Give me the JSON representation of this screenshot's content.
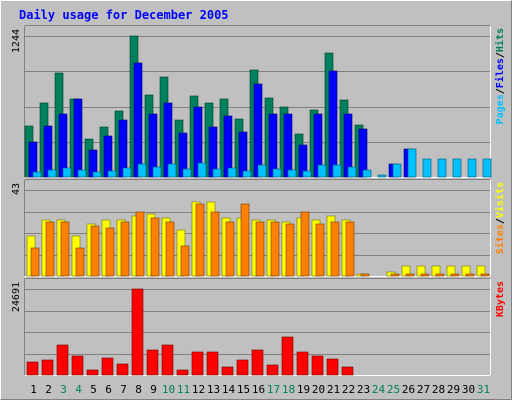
{
  "chart_data": {
    "type": "bar",
    "title": "Daily usage for December 2005",
    "days": [
      "1",
      "2",
      "3",
      "4",
      "5",
      "6",
      "7",
      "8",
      "9",
      "10",
      "11",
      "12",
      "13",
      "14",
      "15",
      "16",
      "17",
      "18",
      "19",
      "20",
      "21",
      "22",
      "23",
      "24",
      "25",
      "26",
      "27",
      "28",
      "29",
      "30",
      "31"
    ],
    "weekend_days": [
      "3",
      "4",
      "10",
      "11",
      "17",
      "18",
      "24",
      "25",
      "31"
    ],
    "panels": [
      {
        "name": "hits-files-pages",
        "ymax_label": "1244",
        "ymax": 1244,
        "legend": [
          {
            "text": "Pages",
            "color": "#00c0ff"
          },
          {
            "text": "/",
            "color": "#000000"
          },
          {
            "text": "Files",
            "color": "#0000ff"
          },
          {
            "text": "/",
            "color": "#000000"
          },
          {
            "text": "Hits",
            "color": "#00805c"
          }
        ],
        "series": [
          {
            "name": "Hits",
            "color": "#00805c",
            "values": [
              451,
              656,
              916,
              688,
              331,
              443,
              580,
              1244,
              721,
              880,
              500,
              711,
              656,
              688,
              516,
              942,
              700,
              615,
              375,
              589,
              1091,
              681,
              457,
              0,
              0,
              0,
              0,
              0,
              0,
              0,
              0
            ]
          },
          {
            "name": "Files",
            "color": "#0000ff",
            "values": [
              311,
              451,
              553,
              688,
              237,
              361,
              500,
              1010,
              553,
              656,
              385,
              615,
              443,
              535,
              393,
              819,
              553,
              557,
              280,
              557,
              934,
              553,
              422,
              0,
              115,
              246,
              0,
              0,
              0,
              0,
              0
            ]
          },
          {
            "name": "Pages",
            "color": "#00c0ff",
            "values": [
              41,
              66,
              82,
              66,
              41,
              57,
              82,
              115,
              90,
              115,
              73,
              123,
              73,
              82,
              57,
              107,
              73,
              66,
              49,
              107,
              107,
              90,
              66,
              12,
              115,
              246,
              156,
              156,
              156,
              156,
              156
            ]
          }
        ]
      },
      {
        "name": "visits-sites",
        "ymax_label": "43",
        "ymax": 43,
        "legend": [
          {
            "text": "Sites",
            "color": "#ff8000"
          },
          {
            "text": "/",
            "color": "#000000"
          },
          {
            "text": "Visits",
            "color": "#ffff00"
          }
        ],
        "series": [
          {
            "name": "Visits",
            "color": "#ffff00",
            "values": [
              20,
              28,
              28,
              20,
              26,
              28,
              28,
              30,
              31,
              29,
              23,
              37,
              37,
              29,
              29,
              28,
              28,
              27,
              29,
              28,
              30,
              28,
              1,
              0,
              2,
              5,
              5,
              5,
              5,
              5,
              5
            ]
          },
          {
            "name": "Sites",
            "color": "#ff8000",
            "values": [
              14,
              27,
              27,
              14,
              25,
              24,
              27,
              32,
              29,
              27,
              15,
              36,
              32,
              27,
              36,
              27,
              27,
              26,
              32,
              26,
              27,
              27,
              1,
              0,
              1,
              1,
              1,
              1,
              1,
              1,
              1
            ]
          }
        ]
      },
      {
        "name": "kbytes",
        "ymax_label": "24691",
        "ymax": 24691,
        "legend": [
          {
            "text": "KBytes",
            "color": "#ff0000"
          }
        ],
        "series": [
          {
            "name": "KBytes",
            "color": "#ff0000",
            "values": [
              3608,
              4221,
              8599,
              5477,
              1353,
              4832,
              3217,
              24691,
              7213,
              8599,
              1398,
              6556,
              6556,
              2225,
              4221,
              7213,
              2889,
              10931,
              6556,
              5477,
              4547,
              2225,
              0,
              0,
              0,
              0,
              0,
              0,
              0,
              0,
              0
            ]
          }
        ]
      }
    ]
  }
}
